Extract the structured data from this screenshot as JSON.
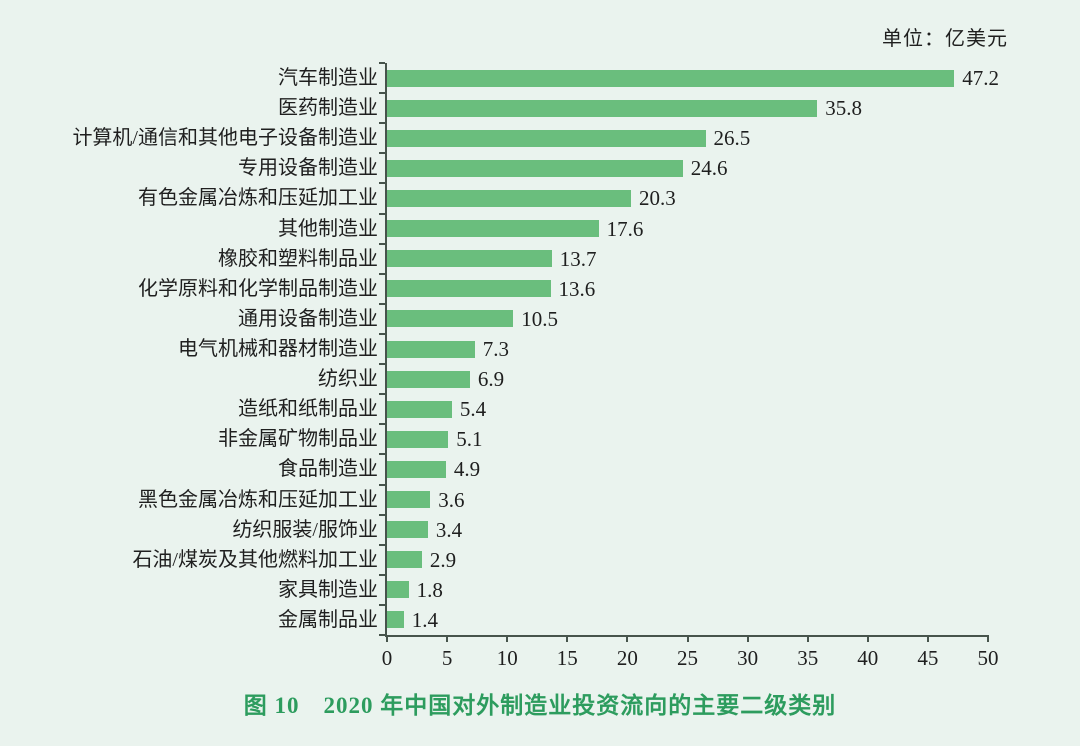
{
  "page": {
    "unit_label": "单位：亿美元",
    "caption": "图 10　2020 年中国对外制造业投资流向的主要二级类别"
  },
  "colors": {
    "background": "#eaf3ee",
    "bar": "#6abe7d",
    "caption_green": "#2d9c5e",
    "axis": "#47544c",
    "text": "#1f1f1f"
  },
  "chart_data": {
    "type": "bar",
    "orientation": "horizontal",
    "title": "图 10　2020 年中国对外制造业投资流向的主要二级类别",
    "unit": "亿美元",
    "xlabel": "",
    "ylabel": "",
    "xlim": [
      0,
      50
    ],
    "x_ticks": [
      0,
      5,
      10,
      15,
      20,
      25,
      30,
      35,
      40,
      45,
      50
    ],
    "grid": false,
    "legend": false,
    "categories": [
      "汽车制造业",
      "医药制造业",
      "计算机/通信和其他电子设备制造业",
      "专用设备制造业",
      "有色金属冶炼和压延加工业",
      "其他制造业",
      "橡胶和塑料制品业",
      "化学原料和化学制品制造业",
      "通用设备制造业",
      "电气机械和器材制造业",
      "纺织业",
      "造纸和纸制品业",
      "非金属矿物制品业",
      "食品制造业",
      "黑色金属冶炼和压延加工业",
      "纺织服装/服饰业",
      "石油/煤炭及其他燃料加工业",
      "家具制造业",
      "金属制品业"
    ],
    "values": [
      47.2,
      35.8,
      26.5,
      24.6,
      20.3,
      17.6,
      13.7,
      13.6,
      10.5,
      7.3,
      6.9,
      5.4,
      5.1,
      4.9,
      3.6,
      3.4,
      2.9,
      1.8,
      1.4
    ]
  }
}
